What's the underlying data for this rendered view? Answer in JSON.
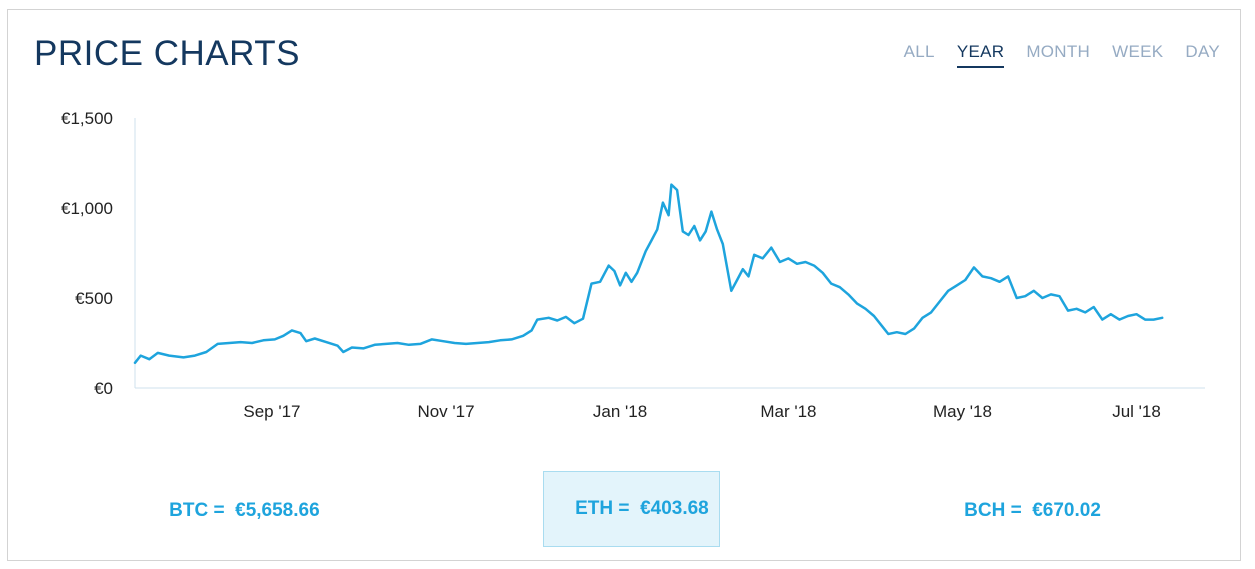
{
  "header": {
    "title": "PRICE CHARTS"
  },
  "tabs": [
    {
      "label": "ALL",
      "active": false
    },
    {
      "label": "YEAR",
      "active": true
    },
    {
      "label": "MONTH",
      "active": false
    },
    {
      "label": "WEEK",
      "active": false
    },
    {
      "label": "DAY",
      "active": false
    }
  ],
  "chart_data": {
    "type": "line",
    "title": "",
    "xlabel": "",
    "ylabel": "",
    "ylim": [
      0,
      1500
    ],
    "xlim": [
      "2017-07-15",
      "2018-07-25"
    ],
    "y_ticks": [
      {
        "value": 0,
        "label": "€0"
      },
      {
        "value": 500,
        "label": "€500"
      },
      {
        "value": 1000,
        "label": "€1,000"
      },
      {
        "value": 1500,
        "label": "€1,500"
      }
    ],
    "x_ticks": [
      {
        "date": "2017-09-01",
        "label": "Sep '17"
      },
      {
        "date": "2017-11-01",
        "label": "Nov '17"
      },
      {
        "date": "2018-01-01",
        "label": "Jan '18"
      },
      {
        "date": "2018-03-01",
        "label": "Mar '18"
      },
      {
        "date": "2018-05-01",
        "label": "May '18"
      },
      {
        "date": "2018-07-01",
        "label": "Jul '18"
      }
    ],
    "line_color": "#1ea4dd",
    "grid": false,
    "series": [
      {
        "values": [
          [
            "2017-07-15",
            140
          ],
          [
            "2017-07-17",
            180
          ],
          [
            "2017-07-20",
            160
          ],
          [
            "2017-07-23",
            195
          ],
          [
            "2017-07-27",
            180
          ],
          [
            "2017-08-01",
            170
          ],
          [
            "2017-08-05",
            180
          ],
          [
            "2017-08-09",
            200
          ],
          [
            "2017-08-13",
            245
          ],
          [
            "2017-08-17",
            250
          ],
          [
            "2017-08-21",
            255
          ],
          [
            "2017-08-25",
            250
          ],
          [
            "2017-08-29",
            265
          ],
          [
            "2017-09-02",
            270
          ],
          [
            "2017-09-05",
            290
          ],
          [
            "2017-09-08",
            320
          ],
          [
            "2017-09-11",
            305
          ],
          [
            "2017-09-13",
            260
          ],
          [
            "2017-09-16",
            275
          ],
          [
            "2017-09-20",
            255
          ],
          [
            "2017-09-24",
            235
          ],
          [
            "2017-09-26",
            200
          ],
          [
            "2017-09-29",
            225
          ],
          [
            "2017-10-03",
            220
          ],
          [
            "2017-10-07",
            240
          ],
          [
            "2017-10-11",
            245
          ],
          [
            "2017-10-15",
            250
          ],
          [
            "2017-10-19",
            240
          ],
          [
            "2017-10-23",
            245
          ],
          [
            "2017-10-27",
            270
          ],
          [
            "2017-10-31",
            260
          ],
          [
            "2017-11-04",
            250
          ],
          [
            "2017-11-08",
            245
          ],
          [
            "2017-11-12",
            250
          ],
          [
            "2017-11-16",
            255
          ],
          [
            "2017-11-20",
            265
          ],
          [
            "2017-11-24",
            270
          ],
          [
            "2017-11-28",
            290
          ],
          [
            "2017-12-01",
            320
          ],
          [
            "2017-12-03",
            380
          ],
          [
            "2017-12-07",
            390
          ],
          [
            "2017-12-10",
            375
          ],
          [
            "2017-12-13",
            395
          ],
          [
            "2017-12-16",
            360
          ],
          [
            "2017-12-19",
            385
          ],
          [
            "2017-12-22",
            580
          ],
          [
            "2017-12-25",
            590
          ],
          [
            "2017-12-28",
            680
          ],
          [
            "2017-12-30",
            650
          ],
          [
            "2018-01-01",
            570
          ],
          [
            "2018-01-03",
            640
          ],
          [
            "2018-01-05",
            590
          ],
          [
            "2018-01-07",
            640
          ],
          [
            "2018-01-10",
            760
          ],
          [
            "2018-01-12",
            820
          ],
          [
            "2018-01-14",
            880
          ],
          [
            "2018-01-16",
            1030
          ],
          [
            "2018-01-18",
            960
          ],
          [
            "2018-01-19",
            1130
          ],
          [
            "2018-01-21",
            1100
          ],
          [
            "2018-01-23",
            870
          ],
          [
            "2018-01-25",
            850
          ],
          [
            "2018-01-27",
            900
          ],
          [
            "2018-01-29",
            820
          ],
          [
            "2018-01-31",
            870
          ],
          [
            "2018-02-02",
            980
          ],
          [
            "2018-02-04",
            880
          ],
          [
            "2018-02-06",
            800
          ],
          [
            "2018-02-09",
            540
          ],
          [
            "2018-02-11",
            600
          ],
          [
            "2018-02-13",
            660
          ],
          [
            "2018-02-15",
            620
          ],
          [
            "2018-02-17",
            740
          ],
          [
            "2018-02-20",
            720
          ],
          [
            "2018-02-23",
            780
          ],
          [
            "2018-02-26",
            700
          ],
          [
            "2018-03-01",
            720
          ],
          [
            "2018-03-04",
            690
          ],
          [
            "2018-03-07",
            700
          ],
          [
            "2018-03-10",
            680
          ],
          [
            "2018-03-13",
            640
          ],
          [
            "2018-03-16",
            580
          ],
          [
            "2018-03-19",
            560
          ],
          [
            "2018-03-22",
            520
          ],
          [
            "2018-03-25",
            470
          ],
          [
            "2018-03-28",
            440
          ],
          [
            "2018-03-31",
            400
          ],
          [
            "2018-04-03",
            340
          ],
          [
            "2018-04-05",
            300
          ],
          [
            "2018-04-08",
            310
          ],
          [
            "2018-04-11",
            300
          ],
          [
            "2018-04-14",
            330
          ],
          [
            "2018-04-17",
            390
          ],
          [
            "2018-04-20",
            420
          ],
          [
            "2018-04-23",
            480
          ],
          [
            "2018-04-26",
            540
          ],
          [
            "2018-04-29",
            570
          ],
          [
            "2018-05-02",
            600
          ],
          [
            "2018-05-05",
            670
          ],
          [
            "2018-05-08",
            620
          ],
          [
            "2018-05-11",
            610
          ],
          [
            "2018-05-14",
            590
          ],
          [
            "2018-05-17",
            620
          ],
          [
            "2018-05-20",
            500
          ],
          [
            "2018-05-23",
            510
          ],
          [
            "2018-05-26",
            540
          ],
          [
            "2018-05-29",
            500
          ],
          [
            "2018-06-01",
            520
          ],
          [
            "2018-06-04",
            510
          ],
          [
            "2018-06-07",
            430
          ],
          [
            "2018-06-10",
            440
          ],
          [
            "2018-06-13",
            420
          ],
          [
            "2018-06-16",
            450
          ],
          [
            "2018-06-19",
            380
          ],
          [
            "2018-06-22",
            410
          ],
          [
            "2018-06-25",
            380
          ],
          [
            "2018-06-28",
            400
          ],
          [
            "2018-07-01",
            410
          ],
          [
            "2018-07-04",
            380
          ],
          [
            "2018-07-07",
            380
          ],
          [
            "2018-07-10",
            390
          ]
        ]
      }
    ]
  },
  "prices": [
    {
      "label": "BTC =",
      "value": "€5,658.66",
      "selected": false
    },
    {
      "label": "ETH =",
      "value": "€403.68",
      "selected": true
    },
    {
      "label": "BCH =",
      "value": "€670.02",
      "selected": false
    }
  ]
}
